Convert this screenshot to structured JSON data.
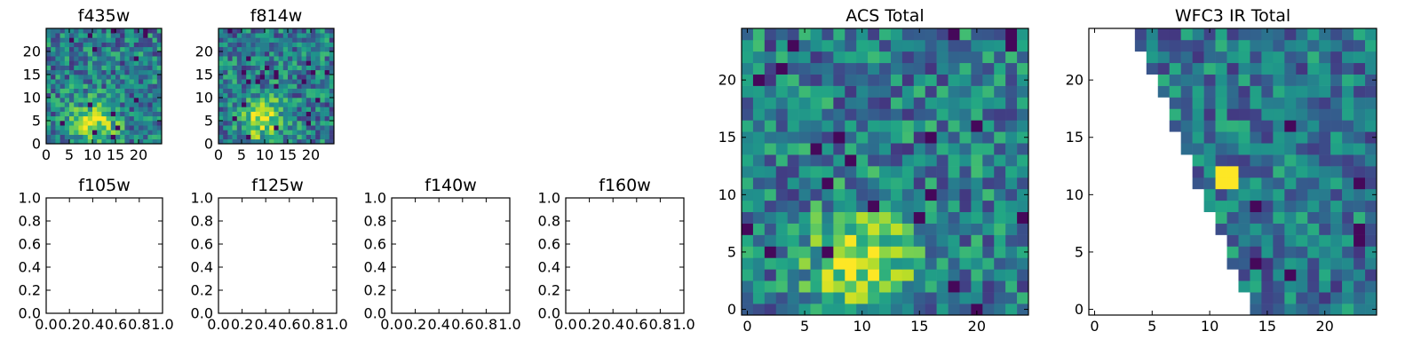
{
  "chart_data": [
    {
      "type": "heatmap",
      "title": "f435w",
      "colormap": "viridis",
      "seed": 11,
      "xlim": [
        0,
        25
      ],
      "ylim": [
        0,
        25
      ],
      "x_ticks": [
        0,
        5,
        10,
        15,
        20
      ],
      "y_ticks": [
        0,
        5,
        10,
        15,
        20
      ],
      "grid_size": [
        25,
        25
      ],
      "bright_spot": [
        10,
        4
      ]
    },
    {
      "type": "heatmap",
      "title": "f814w",
      "colormap": "viridis",
      "seed": 23,
      "xlim": [
        0,
        25
      ],
      "ylim": [
        0,
        25
      ],
      "x_ticks": [
        0,
        5,
        10,
        15,
        20
      ],
      "y_ticks": [
        0,
        5,
        10,
        15,
        20
      ],
      "grid_size": [
        25,
        25
      ],
      "bright_spot": [
        9,
        5
      ]
    },
    {
      "type": "empty",
      "title": "f105w",
      "xlim": [
        0,
        1
      ],
      "ylim": [
        0,
        1
      ],
      "x_ticks": [
        "0.0",
        "0.2",
        "0.4",
        "0.6",
        "0.8",
        "1.0"
      ],
      "y_ticks": [
        "0.0",
        "0.2",
        "0.4",
        "0.6",
        "0.8",
        "1.0"
      ]
    },
    {
      "type": "empty",
      "title": "f125w",
      "xlim": [
        0,
        1
      ],
      "ylim": [
        0,
        1
      ],
      "x_ticks": [
        "0.0",
        "0.2",
        "0.4",
        "0.6",
        "0.8",
        "1.0"
      ],
      "y_ticks": [
        "0.0",
        "0.2",
        "0.4",
        "0.6",
        "0.8",
        "1.0"
      ]
    },
    {
      "type": "empty",
      "title": "f140w",
      "xlim": [
        0,
        1
      ],
      "ylim": [
        0,
        1
      ],
      "x_ticks": [
        "0.0",
        "0.2",
        "0.4",
        "0.6",
        "0.8",
        "1.0"
      ],
      "y_ticks": [
        "0.0",
        "0.2",
        "0.4",
        "0.6",
        "0.8",
        "1.0"
      ]
    },
    {
      "type": "empty",
      "title": "f160w",
      "xlim": [
        0,
        1
      ],
      "ylim": [
        0,
        1
      ],
      "x_ticks": [
        "0.0",
        "0.2",
        "0.4",
        "0.6",
        "0.8",
        "1.0"
      ],
      "y_ticks": [
        "0.0",
        "0.2",
        "0.4",
        "0.6",
        "0.8",
        "1.0"
      ]
    },
    {
      "type": "heatmap",
      "title": "ACS Total",
      "colormap": "viridis",
      "seed": 37,
      "xlim": [
        -0.5,
        24.5
      ],
      "ylim": [
        -0.5,
        24.5
      ],
      "x_ticks": [
        0,
        5,
        10,
        15,
        20
      ],
      "y_ticks": [
        0,
        5,
        10,
        15,
        20
      ],
      "grid_size": [
        25,
        25
      ],
      "bright_spot": [
        10,
        4
      ]
    },
    {
      "type": "heatmap",
      "title": "WFC3 IR Total",
      "colormap": "viridis",
      "seed": 53,
      "xlim": [
        -0.5,
        24.5
      ],
      "ylim": [
        -0.5,
        24.5
      ],
      "x_ticks": [
        0,
        5,
        10,
        15,
        20
      ],
      "y_ticks": [
        0,
        5,
        10,
        15,
        20
      ],
      "grid_size": [
        25,
        25
      ],
      "bright_spot": [
        11.5,
        11.5
      ],
      "masked_region": "upper-left triangle"
    }
  ]
}
